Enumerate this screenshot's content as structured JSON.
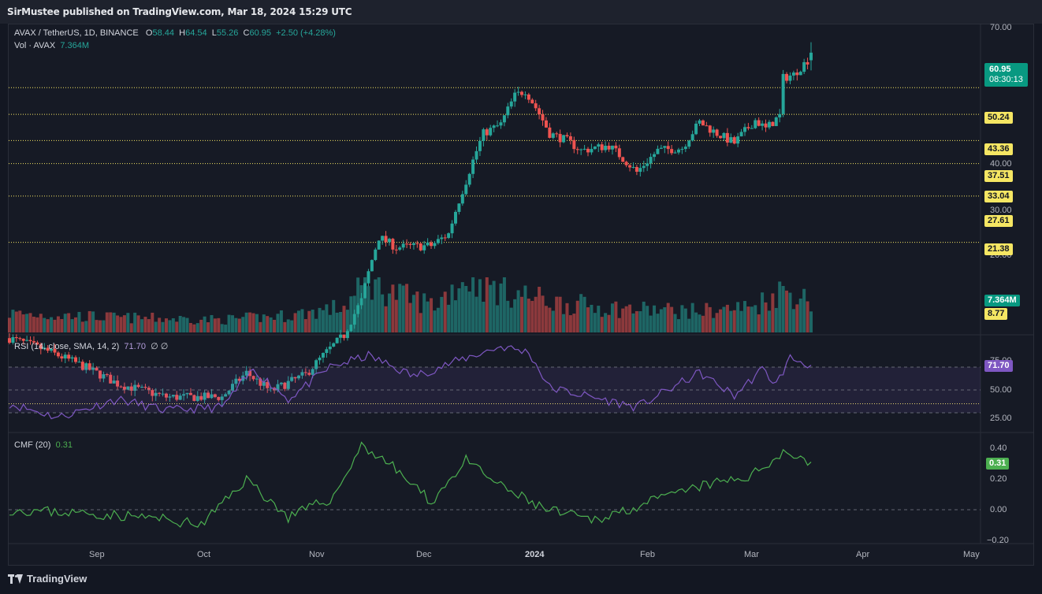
{
  "header": {
    "published": "SirMustee published on TradingView.com, Mar 18, 2024 15:29 UTC"
  },
  "footer": {
    "brand": "TradingView"
  },
  "colors": {
    "up": "#26a69a",
    "down": "#ef5350",
    "hline": "#f5e663",
    "rsi": "#7e57c2",
    "cmf": "#4caf50",
    "bg": "#161a25"
  },
  "legend": {
    "symbol": "AVAX / TetherUS, 1D, BINANCE",
    "o_label": "O",
    "o": "58.44",
    "h_label": "H",
    "h": "64.54",
    "l_label": "L",
    "l": "55.26",
    "c_label": "C",
    "c": "60.95",
    "change": "+2.50 (+4.28%)",
    "vol_label": "Vol · AVAX",
    "vol": "7.364M",
    "rsi_label": "RSI (14, close, SMA, 14, 2)",
    "rsi_value": "71.70",
    "rsi_extra": "∅ ∅",
    "cmf_label": "CMF (20)",
    "cmf_value": "0.31"
  },
  "badges": {
    "price": "60.95",
    "countdown": "08:30:13",
    "vol": "7.364M",
    "rsi": "71.70",
    "cmf": "0.31"
  },
  "chart_data": [
    {
      "type": "candlestick",
      "title": "AVAX / TetherUS, 1D, BINANCE",
      "y_ticks": [
        "70.00",
        "40.00",
        "30.00",
        "20.00"
      ],
      "ylim": [
        5,
        70
      ],
      "x_ticks": [
        "Sep",
        "Oct",
        "Nov",
        "Dec",
        "2024",
        "Feb",
        "Mar",
        "Apr",
        "May"
      ],
      "horizontal_levels": [
        "50.24",
        "43.36",
        "37.51",
        "33.04",
        "27.61",
        "21.38",
        "8.77"
      ],
      "last": {
        "open": 58.44,
        "high": 64.54,
        "low": 55.26,
        "close": 60.95
      },
      "close_anchors": [
        {
          "date": "2023-08-01",
          "close": 12.6
        },
        {
          "date": "2023-08-10",
          "close": 11.9
        },
        {
          "date": "2023-08-20",
          "close": 11.0
        },
        {
          "date": "2023-09-01",
          "close": 9.8
        },
        {
          "date": "2023-09-15",
          "close": 9.1
        },
        {
          "date": "2023-10-01",
          "close": 9.1
        },
        {
          "date": "2023-10-08",
          "close": 10.4
        },
        {
          "date": "2023-10-15",
          "close": 9.4
        },
        {
          "date": "2023-10-25",
          "close": 10.3
        },
        {
          "date": "2023-11-05",
          "close": 12.8
        },
        {
          "date": "2023-11-10",
          "close": 15.5
        },
        {
          "date": "2023-11-15",
          "close": 22.0
        },
        {
          "date": "2023-11-20",
          "close": 20.8
        },
        {
          "date": "2023-11-30",
          "close": 21.0
        },
        {
          "date": "2023-12-05",
          "close": 22.4
        },
        {
          "date": "2023-12-10",
          "close": 30.0
        },
        {
          "date": "2023-12-15",
          "close": 39.0
        },
        {
          "date": "2023-12-20",
          "close": 41.0
        },
        {
          "date": "2023-12-24",
          "close": 48.0
        },
        {
          "date": "2023-12-27",
          "close": 49.5
        },
        {
          "date": "2024-01-03",
          "close": 39.0
        },
        {
          "date": "2024-01-08",
          "close": 37.5
        },
        {
          "date": "2024-01-12",
          "close": 35.5
        },
        {
          "date": "2024-01-20",
          "close": 36.5
        },
        {
          "date": "2024-01-28",
          "close": 31.5
        },
        {
          "date": "2024-02-03",
          "close": 35.5
        },
        {
          "date": "2024-02-10",
          "close": 36.0
        },
        {
          "date": "2024-02-15",
          "close": 41.5
        },
        {
          "date": "2024-02-20",
          "close": 39.0
        },
        {
          "date": "2024-02-25",
          "close": 37.0
        },
        {
          "date": "2024-03-02",
          "close": 42.0
        },
        {
          "date": "2024-03-05",
          "close": 40.0
        },
        {
          "date": "2024-03-09",
          "close": 43.0
        },
        {
          "date": "2024-03-10",
          "close": 53.0
        },
        {
          "date": "2024-03-13",
          "close": 54.0
        },
        {
          "date": "2024-03-17",
          "close": 58.44
        },
        {
          "date": "2024-03-18",
          "close": 60.95
        }
      ]
    },
    {
      "type": "bar",
      "title": "Vol · AVAX",
      "last_value": "7.364M",
      "volume_anchors": [
        {
          "date": "2023-08-01",
          "v": 4.5
        },
        {
          "date": "2023-09-01",
          "v": 3.5
        },
        {
          "date": "2023-10-01",
          "v": 3.0
        },
        {
          "date": "2023-10-20",
          "v": 4.0
        },
        {
          "date": "2023-11-05",
          "v": 6.0
        },
        {
          "date": "2023-11-12",
          "v": 12.0
        },
        {
          "date": "2023-11-20",
          "v": 9.0
        },
        {
          "date": "2023-12-01",
          "v": 6.5
        },
        {
          "date": "2023-12-10",
          "v": 13.0
        },
        {
          "date": "2023-12-20",
          "v": 10.0
        },
        {
          "date": "2024-01-05",
          "v": 7.0
        },
        {
          "date": "2024-01-25",
          "v": 5.5
        },
        {
          "date": "2024-02-15",
          "v": 5.0
        },
        {
          "date": "2024-03-01",
          "v": 6.0
        },
        {
          "date": "2024-03-10",
          "v": 10.0
        },
        {
          "date": "2024-03-18",
          "v": 7.364
        }
      ]
    },
    {
      "type": "line",
      "title": "RSI (14, close, SMA, 14, 2)",
      "y_ticks": [
        "50.00",
        "25.00"
      ],
      "band": [
        30,
        70
      ],
      "last_value": "71.70",
      "rsi_anchors": [
        {
          "date": "2023-08-01",
          "v": 38
        },
        {
          "date": "2023-08-15",
          "v": 26
        },
        {
          "date": "2023-09-01",
          "v": 42
        },
        {
          "date": "2023-09-15",
          "v": 32
        },
        {
          "date": "2023-10-01",
          "v": 35
        },
        {
          "date": "2023-10-10",
          "v": 68
        },
        {
          "date": "2023-10-20",
          "v": 42
        },
        {
          "date": "2023-11-01",
          "v": 70
        },
        {
          "date": "2023-11-12",
          "v": 80
        },
        {
          "date": "2023-11-25",
          "v": 62
        },
        {
          "date": "2023-12-10",
          "v": 78
        },
        {
          "date": "2023-12-20",
          "v": 88
        },
        {
          "date": "2023-12-28",
          "v": 83
        },
        {
          "date": "2024-01-03",
          "v": 52
        },
        {
          "date": "2024-01-28",
          "v": 35
        },
        {
          "date": "2024-02-15",
          "v": 65
        },
        {
          "date": "2024-02-25",
          "v": 45
        },
        {
          "date": "2024-03-04",
          "v": 68
        },
        {
          "date": "2024-03-08",
          "v": 55
        },
        {
          "date": "2024-03-12",
          "v": 78
        },
        {
          "date": "2024-03-18",
          "v": 71.7
        }
      ]
    },
    {
      "type": "line",
      "title": "CMF (20)",
      "y_ticks": [
        "0.40",
        "0.20",
        "0.00",
        "−0.20"
      ],
      "last_value": "0.31",
      "cmf_anchors": [
        {
          "date": "2023-08-01",
          "v": 0.0
        },
        {
          "date": "2023-08-20",
          "v": -0.02
        },
        {
          "date": "2023-09-10",
          "v": -0.05
        },
        {
          "date": "2023-09-25",
          "v": -0.1
        },
        {
          "date": "2023-10-08",
          "v": 0.2
        },
        {
          "date": "2023-10-20",
          "v": -0.05
        },
        {
          "date": "2023-11-02",
          "v": 0.08
        },
        {
          "date": "2023-11-10",
          "v": 0.42
        },
        {
          "date": "2023-11-18",
          "v": 0.3
        },
        {
          "date": "2023-11-30",
          "v": 0.05
        },
        {
          "date": "2023-12-10",
          "v": 0.32
        },
        {
          "date": "2023-12-20",
          "v": 0.15
        },
        {
          "date": "2024-01-02",
          "v": 0.0
        },
        {
          "date": "2024-01-15",
          "v": -0.07
        },
        {
          "date": "2024-02-01",
          "v": 0.05
        },
        {
          "date": "2024-02-15",
          "v": 0.15
        },
        {
          "date": "2024-03-01",
          "v": 0.22
        },
        {
          "date": "2024-03-10",
          "v": 0.38
        },
        {
          "date": "2024-03-18",
          "v": 0.31
        }
      ]
    }
  ]
}
